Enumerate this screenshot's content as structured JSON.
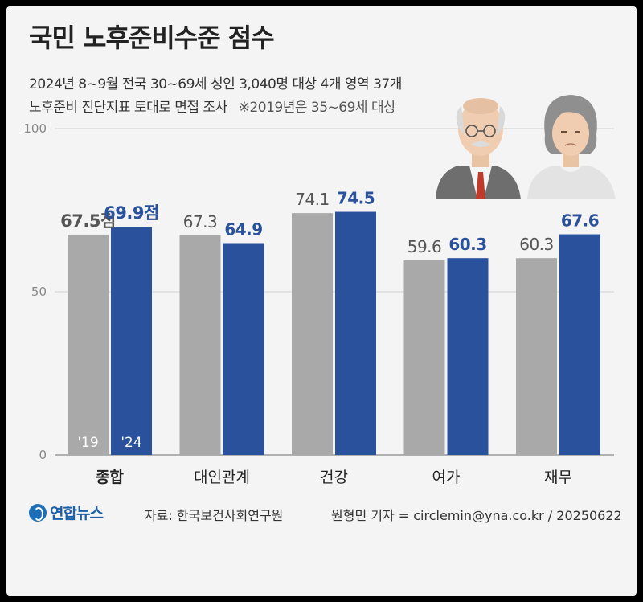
{
  "header": {
    "title": "국민 노후준비수준 점수",
    "subtitle_line1": "2024년 8~9월 전국 30~69세 성인 3,040명 대상 4개 영역 37개",
    "subtitle_line2": "노후준비 진단지표 토대로 면접 조사",
    "note": "※2019년은 35~69세 대상"
  },
  "chart_data": {
    "type": "bar",
    "categories": [
      "종합",
      "대인관계",
      "건강",
      "여가",
      "재무"
    ],
    "series": [
      {
        "name": "'19",
        "values": [
          67.5,
          67.3,
          74.1,
          59.6,
          60.3
        ],
        "color": "#a9a9a9"
      },
      {
        "name": "'24",
        "values": [
          69.9,
          64.9,
          74.5,
          60.3,
          67.6
        ],
        "color": "#2a519c"
      }
    ],
    "data_labels": [
      [
        "67.5점",
        "67.3",
        "74.1",
        "59.6",
        "60.3"
      ],
      [
        "69.9점",
        "64.9",
        "74.5",
        "60.3",
        "67.6"
      ]
    ],
    "y_ticks": [
      "0",
      "50",
      "100"
    ],
    "ylim": [
      0,
      100
    ],
    "bold_category": "종합",
    "legend_placement": "inside-first-bars"
  },
  "illustration": {
    "icons": [
      "elderly-man-icon",
      "elderly-woman-icon"
    ]
  },
  "footer": {
    "logo": "연합뉴스",
    "source": "자료: 한국보건사회연구원",
    "credit": "원형민 기자 = circlemin@yna.co.kr / 20250622"
  }
}
